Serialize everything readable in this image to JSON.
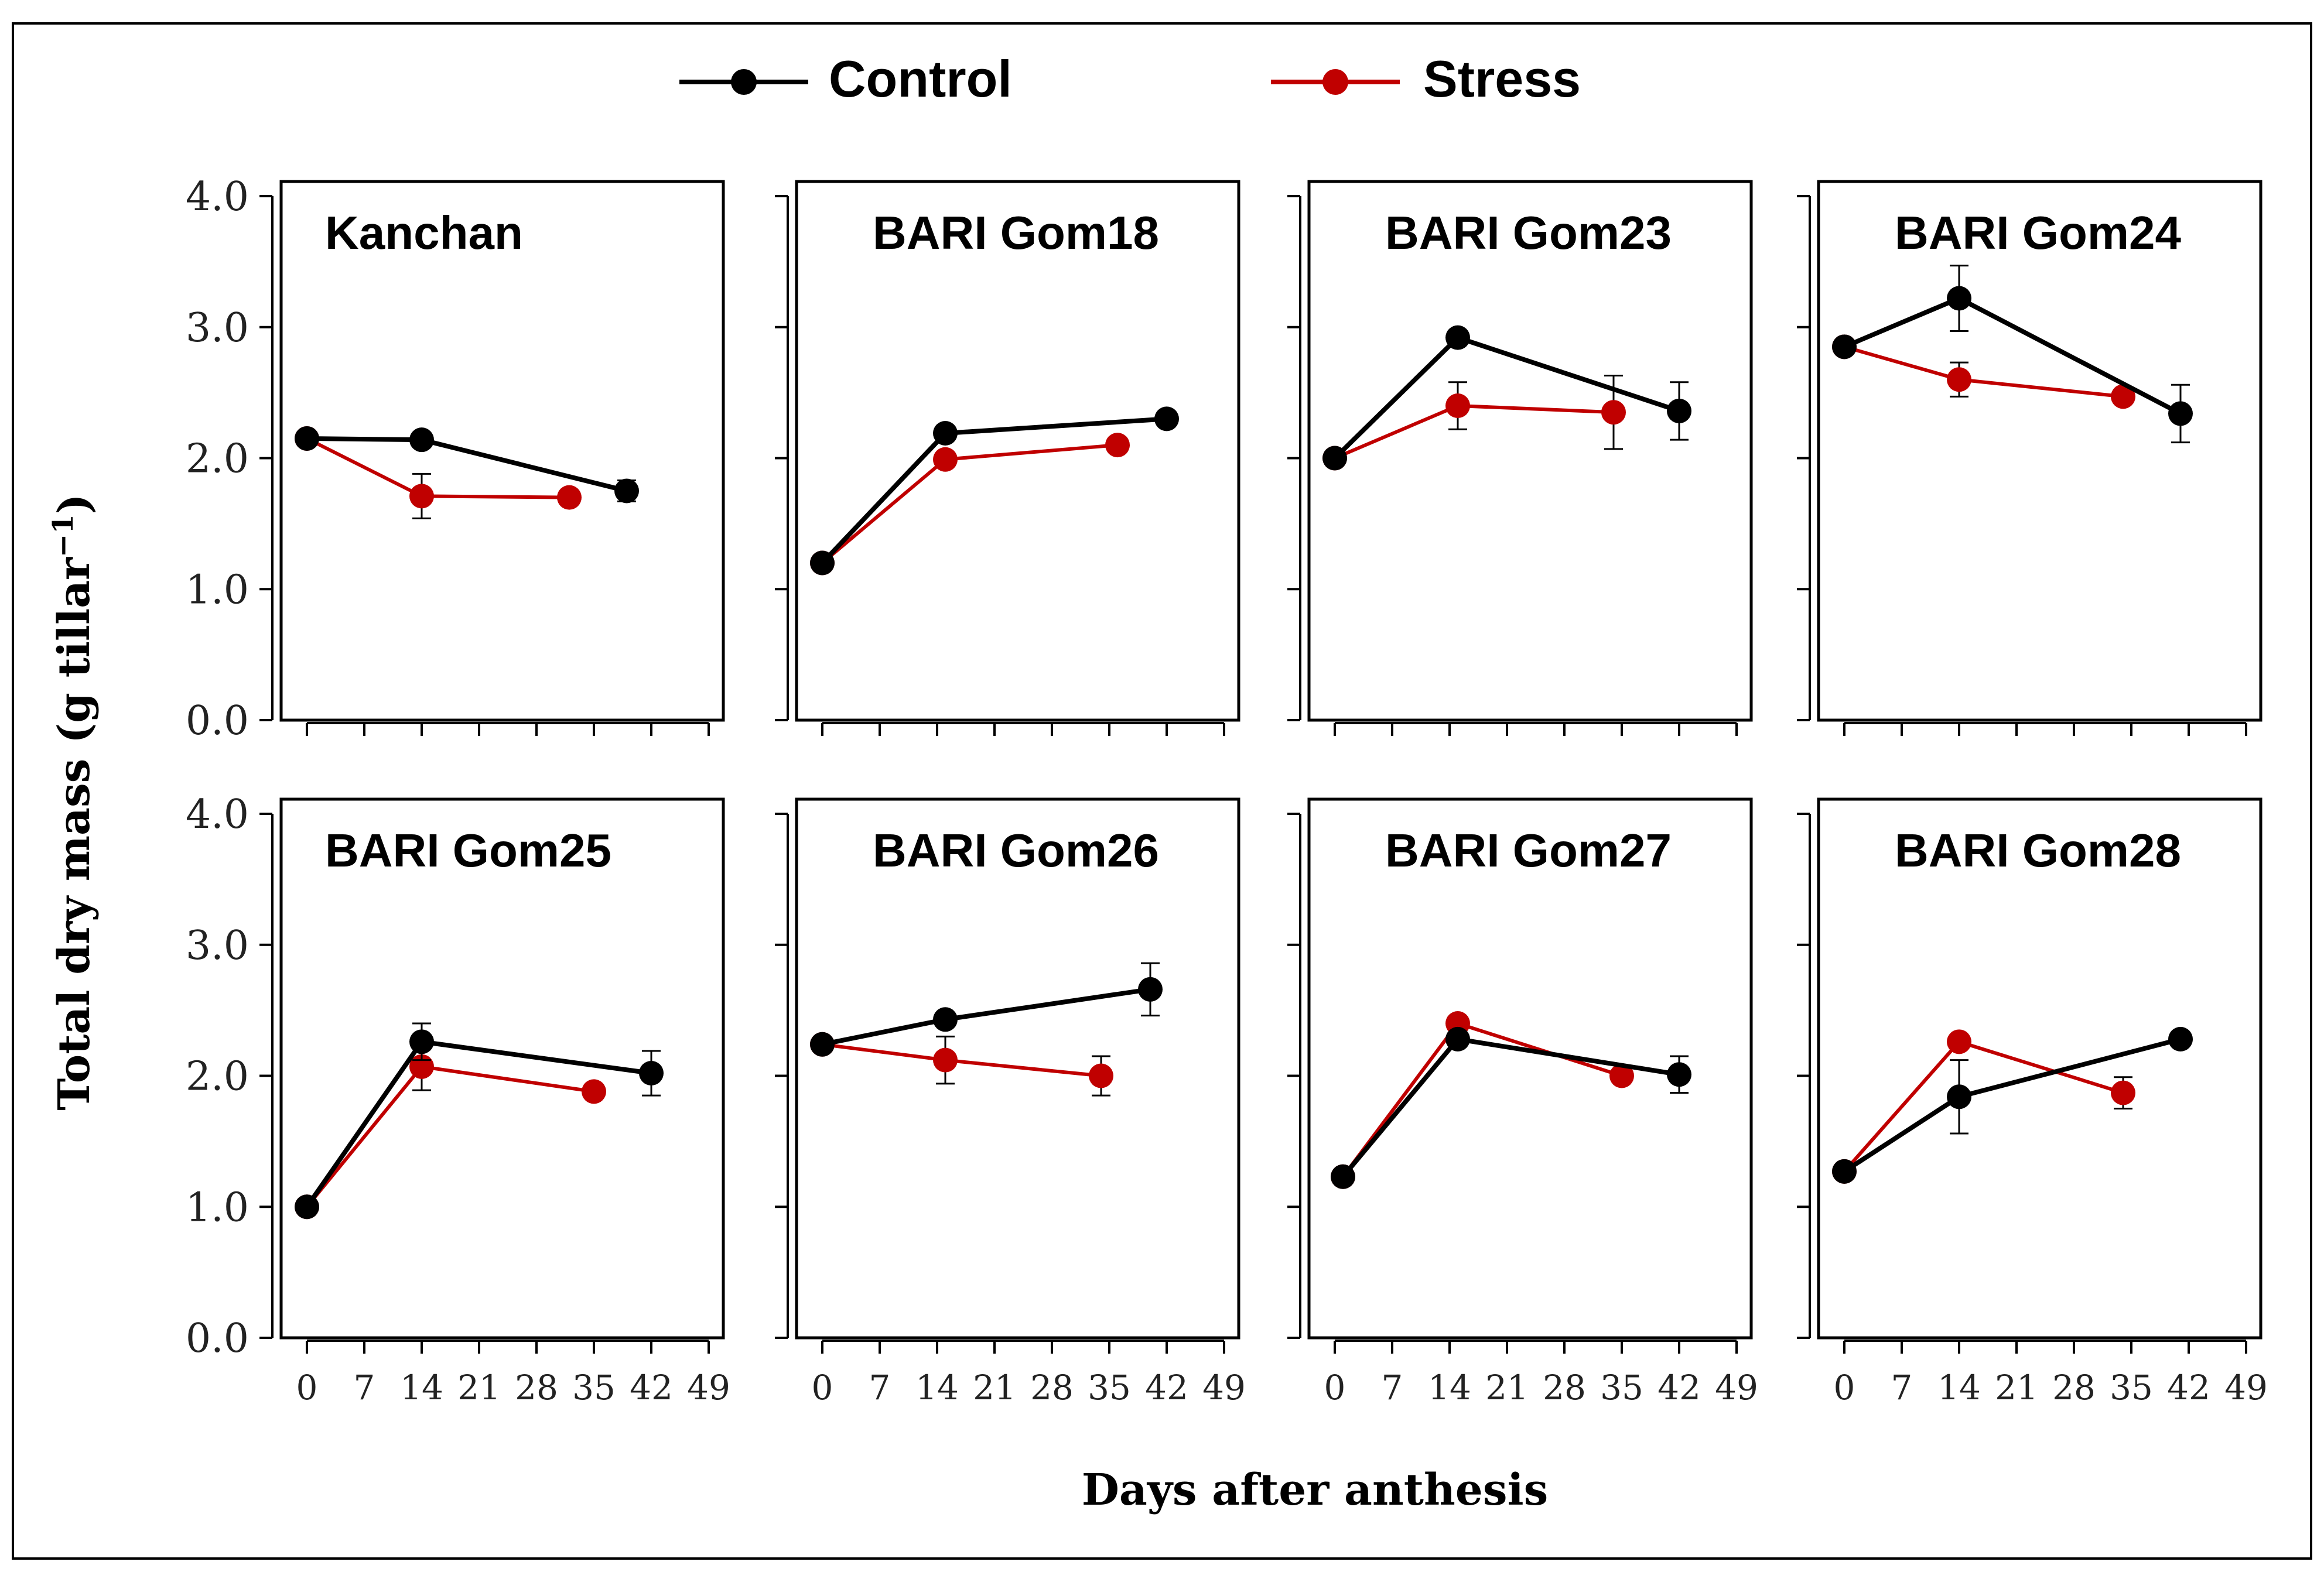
{
  "legend": {
    "control_label": "Control",
    "stress_label": "Stress"
  },
  "colors": {
    "control": "#000000",
    "stress": "#c00000"
  },
  "axis_titles": {
    "x": "Days after anthesis",
    "y_main": "Total dry mass  (g tillar",
    "y_sup": "−1",
    "y_close": ")"
  },
  "chart_data": {
    "type": "line",
    "layout": "2 rows x 4 panels",
    "xlabel": "Days after anthesis",
    "ylabel": "Total dry mass (g tillar−1)",
    "x_ticks": [
      "0",
      "7",
      "14",
      "21",
      "28",
      "35",
      "42",
      "49"
    ],
    "x_tick_values": [
      0,
      7,
      14,
      21,
      28,
      35,
      42,
      49
    ],
    "xlim": [
      -1,
      49
    ],
    "y_ticks": [
      "0.0",
      "1.0",
      "2.0",
      "3.0",
      "4.0"
    ],
    "y_tick_values": [
      0,
      1,
      2,
      3,
      4
    ],
    "ylim": [
      0,
      4
    ],
    "grid": false,
    "legend_position": "top-center",
    "panels": [
      {
        "title": "Kanchan",
        "series": [
          {
            "name": "Control",
            "x": [
              0,
              14,
              39
            ],
            "y": [
              2.15,
              2.14,
              1.75
            ],
            "err": [
              0,
              0,
              0.08
            ]
          },
          {
            "name": "Stress",
            "x": [
              0,
              14,
              32
            ],
            "y": [
              2.15,
              1.71,
              1.7
            ],
            "err": [
              0,
              0.17,
              0
            ]
          }
        ]
      },
      {
        "title": "BARI Gom18",
        "series": [
          {
            "name": "Control",
            "x": [
              0,
              15,
              42
            ],
            "y": [
              1.2,
              2.19,
              2.3
            ],
            "err": [
              0,
              0,
              0
            ]
          },
          {
            "name": "Stress",
            "x": [
              0,
              15,
              36
            ],
            "y": [
              1.2,
              1.99,
              2.1
            ],
            "err": [
              0,
              0,
              0
            ]
          }
        ]
      },
      {
        "title": "BARI Gom23",
        "series": [
          {
            "name": "Control",
            "x": [
              0,
              15,
              42
            ],
            "y": [
              2.0,
              2.92,
              2.36
            ],
            "err": [
              0,
              0,
              0.22
            ]
          },
          {
            "name": "Stress",
            "x": [
              0,
              15,
              34
            ],
            "y": [
              2.0,
              2.4,
              2.35
            ],
            "err": [
              0,
              0.18,
              0.28
            ]
          }
        ]
      },
      {
        "title": "BARI Gom24",
        "series": [
          {
            "name": "Control",
            "x": [
              0,
              14,
              41
            ],
            "y": [
              2.85,
              3.22,
              2.34
            ],
            "err": [
              0,
              0.25,
              0.22
            ]
          },
          {
            "name": "Stress",
            "x": [
              0,
              14,
              34
            ],
            "y": [
              2.85,
              2.6,
              2.47
            ],
            "err": [
              0,
              0.13,
              0
            ]
          }
        ]
      },
      {
        "title": "BARI Gom25",
        "series": [
          {
            "name": "Control",
            "x": [
              0,
              14,
              42
            ],
            "y": [
              1.0,
              2.26,
              2.02
            ],
            "err": [
              0,
              0.14,
              0.17
            ]
          },
          {
            "name": "Stress",
            "x": [
              0,
              14,
              35
            ],
            "y": [
              1.0,
              2.07,
              1.88
            ],
            "err": [
              0,
              0.18,
              0
            ]
          }
        ]
      },
      {
        "title": "BARI Gom26",
        "series": [
          {
            "name": "Control",
            "x": [
              0,
              15,
              40
            ],
            "y": [
              2.24,
              2.43,
              2.66
            ],
            "err": [
              0,
              0,
              0.2
            ]
          },
          {
            "name": "Stress",
            "x": [
              0,
              15,
              34
            ],
            "y": [
              2.24,
              2.12,
              2.0
            ],
            "err": [
              0,
              0.18,
              0.15
            ]
          }
        ]
      },
      {
        "title": "BARI Gom27",
        "series": [
          {
            "name": "Control",
            "x": [
              1,
              15,
              42
            ],
            "y": [
              1.23,
              2.28,
              2.01
            ],
            "err": [
              0,
              0,
              0.14
            ]
          },
          {
            "name": "Stress",
            "x": [
              1,
              15,
              35
            ],
            "y": [
              1.23,
              2.4,
              2.0
            ],
            "err": [
              0,
              0,
              0
            ]
          }
        ]
      },
      {
        "title": "BARI Gom28",
        "series": [
          {
            "name": "Control",
            "x": [
              0,
              14,
              41
            ],
            "y": [
              1.27,
              1.84,
              2.28
            ],
            "err": [
              0,
              0.28,
              0
            ]
          },
          {
            "name": "Stress",
            "x": [
              0,
              14,
              34
            ],
            "y": [
              1.27,
              2.26,
              1.87
            ],
            "err": [
              0,
              0,
              0.12
            ]
          }
        ]
      }
    ]
  }
}
